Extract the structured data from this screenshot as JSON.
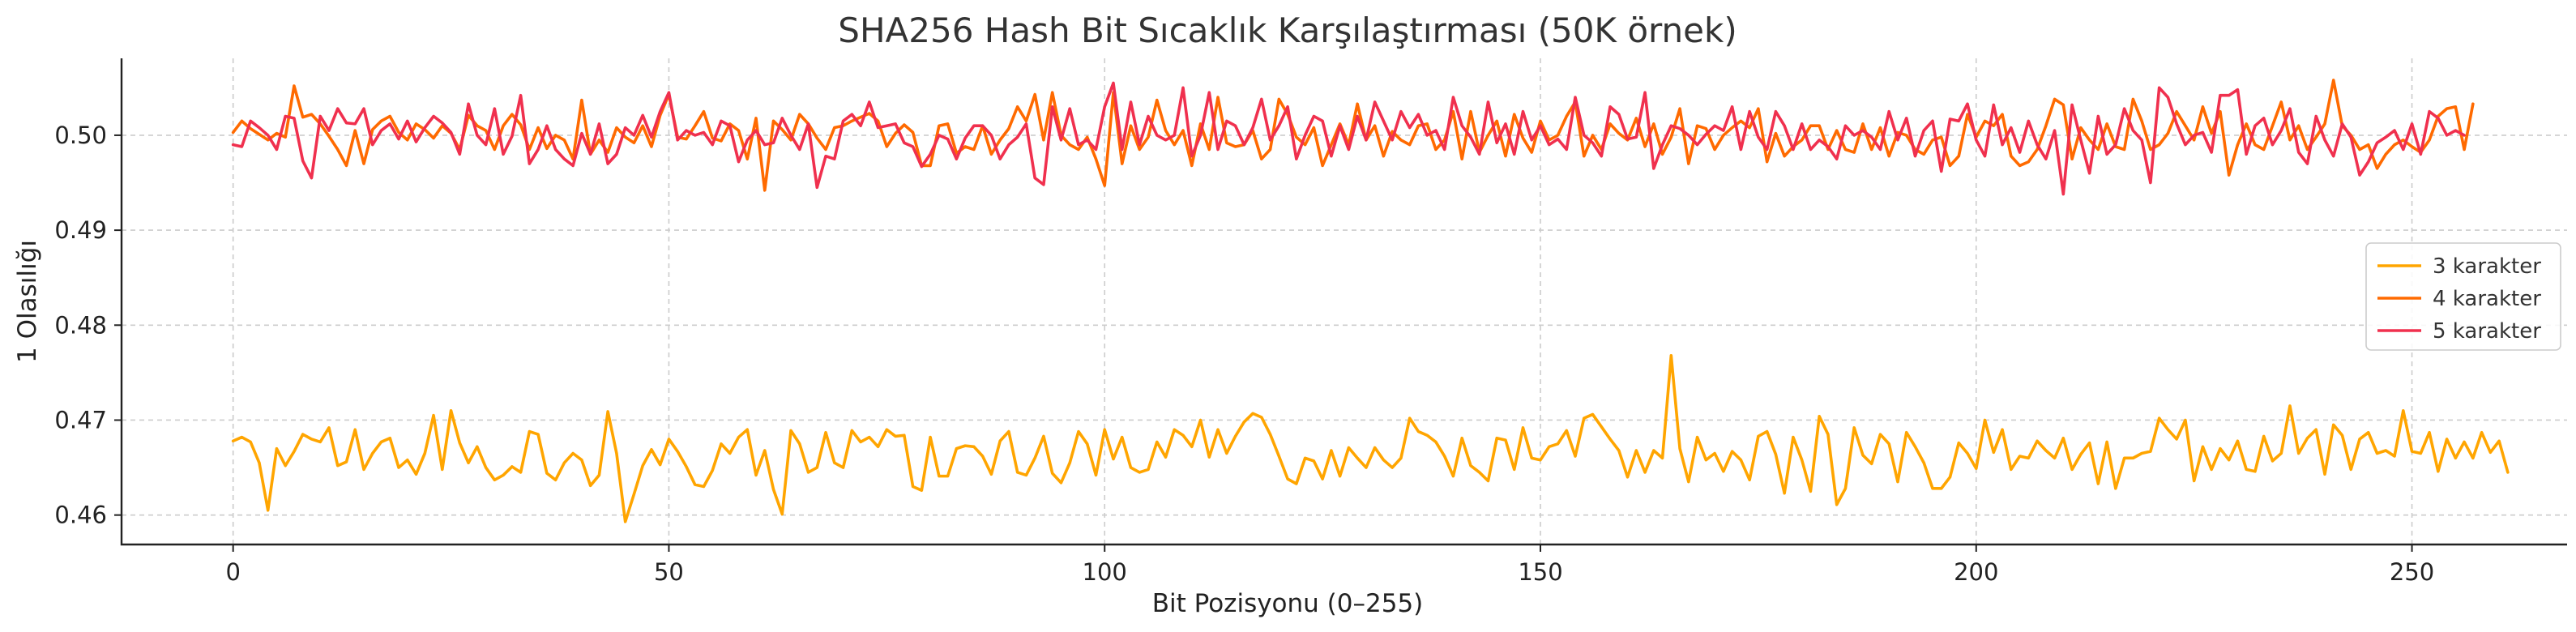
{
  "chart_data": {
    "type": "line",
    "title": "SHA256 Hash Bit Sıcaklık Karşılaştırması (50K örnek)",
    "xlabel": "Bit Pozisyonu (0–255)",
    "ylabel": "1 Olasılığı",
    "xlim": [
      -12.8,
      267.8
    ],
    "ylim": [
      0.4569,
      0.5081
    ],
    "xticks": [
      0,
      50,
      100,
      150,
      200,
      250
    ],
    "xtick_labels": [
      "0",
      "50",
      "100",
      "150",
      "200",
      "250"
    ],
    "yticks": [
      0.46,
      0.47,
      0.48,
      0.49,
      0.5
    ],
    "ytick_labels": [
      "0.46",
      "0.47",
      "0.48",
      "0.49",
      "0.50"
    ],
    "grid": true,
    "legend_position": "center-right",
    "series": [
      {
        "name": "3 karakter",
        "color": "#FFA500",
        "x_start": 0,
        "x_step": 1,
        "values": [
          0.4678,
          0.4682,
          0.4677,
          0.4655,
          0.4605,
          0.467,
          0.4652,
          0.4667,
          0.4685,
          0.468,
          0.4677,
          0.4692,
          0.4652,
          0.4656,
          0.469,
          0.4648,
          0.4665,
          0.4677,
          0.4681,
          0.465,
          0.4658,
          0.4643,
          0.4665,
          0.4705,
          0.4648,
          0.471,
          0.4676,
          0.4655,
          0.4672,
          0.465,
          0.4637,
          0.4642,
          0.4651,
          0.4645,
          0.4688,
          0.4685,
          0.4644,
          0.4637,
          0.4655,
          0.4665,
          0.4658,
          0.4631,
          0.4642,
          0.4709,
          0.4665,
          0.4593,
          0.4622,
          0.4652,
          0.4669,
          0.4653,
          0.468,
          0.4667,
          0.4651,
          0.4632,
          0.463,
          0.4647,
          0.4675,
          0.4665,
          0.4682,
          0.469,
          0.4642,
          0.4668,
          0.4627,
          0.4601,
          0.4689,
          0.4675,
          0.4645,
          0.465,
          0.4687,
          0.4655,
          0.465,
          0.4689,
          0.4677,
          0.4682,
          0.4672,
          0.469,
          0.4683,
          0.4684,
          0.463,
          0.4626,
          0.4682,
          0.4641,
          0.4641,
          0.467,
          0.4673,
          0.4672,
          0.4662,
          0.4643,
          0.4678,
          0.4688,
          0.4645,
          0.4642,
          0.466,
          0.4683,
          0.4644,
          0.4634,
          0.4655,
          0.4688,
          0.4675,
          0.4642,
          0.469,
          0.4659,
          0.4682,
          0.465,
          0.4645,
          0.4648,
          0.4677,
          0.4661,
          0.469,
          0.4684,
          0.4672,
          0.47,
          0.4661,
          0.469,
          0.4665,
          0.4683,
          0.4698,
          0.4707,
          0.4703,
          0.4685,
          0.4662,
          0.4638,
          0.4633,
          0.466,
          0.4657,
          0.4638,
          0.4668,
          0.4641,
          0.4671,
          0.466,
          0.465,
          0.4671,
          0.4658,
          0.465,
          0.466,
          0.4702,
          0.4688,
          0.4684,
          0.4677,
          0.4662,
          0.4641,
          0.4681,
          0.4652,
          0.4645,
          0.4636,
          0.4681,
          0.4679,
          0.4648,
          0.4692,
          0.466,
          0.4658,
          0.4672,
          0.4675,
          0.4689,
          0.4662,
          0.4702,
          0.4706,
          0.4693,
          0.468,
          0.4668,
          0.464,
          0.4668,
          0.4645,
          0.4668,
          0.466,
          0.4768,
          0.467,
          0.4635,
          0.4682,
          0.4658,
          0.4665,
          0.4646,
          0.4667,
          0.4658,
          0.4637,
          0.4683,
          0.4688,
          0.4664,
          0.4623,
          0.4682,
          0.4658,
          0.4625,
          0.4704,
          0.4685,
          0.4611,
          0.4628,
          0.4692,
          0.4663,
          0.4654,
          0.4685,
          0.4675,
          0.4635,
          0.4687,
          0.4672,
          0.4655,
          0.4628,
          0.4628,
          0.464,
          0.4676,
          0.4665,
          0.4649,
          0.47,
          0.4666,
          0.469,
          0.4648,
          0.4662,
          0.466,
          0.4678,
          0.4668,
          0.466,
          0.4681,
          0.4648,
          0.4664,
          0.4676,
          0.4633,
          0.4677,
          0.4628,
          0.466,
          0.466,
          0.4665,
          0.4667,
          0.4702,
          0.469,
          0.468,
          0.47,
          0.4636,
          0.4672,
          0.4648,
          0.467,
          0.4658,
          0.4678,
          0.4648,
          0.4646,
          0.4683,
          0.4657,
          0.4665,
          0.4715,
          0.4665,
          0.4681,
          0.469,
          0.4643,
          0.4695,
          0.4684,
          0.4648,
          0.468,
          0.4687,
          0.4665,
          0.4668,
          0.4662,
          0.471,
          0.4667,
          0.4665,
          0.4687,
          0.4646,
          0.468,
          0.466,
          0.4677,
          0.466,
          0.4687,
          0.4666,
          0.4678,
          0.4645
        ]
      },
      {
        "name": "4 karakter",
        "color": "#FF6A00",
        "x_start": 0,
        "x_step": 1,
        "values": [
          0.5003,
          0.5015,
          0.5007,
          0.5001,
          0.4995,
          0.5002,
          0.4998,
          0.5052,
          0.5019,
          0.5022,
          0.5012,
          0.4999,
          0.4985,
          0.4968,
          0.5005,
          0.497,
          0.5006,
          0.5015,
          0.502,
          0.5003,
          0.4995,
          0.5012,
          0.5006,
          0.4997,
          0.501,
          0.5002,
          0.4985,
          0.5021,
          0.501,
          0.5005,
          0.4985,
          0.501,
          0.5022,
          0.5011,
          0.4985,
          0.5008,
          0.4986,
          0.5,
          0.4995,
          0.4975,
          0.5037,
          0.498,
          0.4995,
          0.4982,
          0.5008,
          0.4998,
          0.4992,
          0.501,
          0.4988,
          0.5021,
          0.5043,
          0.4998,
          0.4996,
          0.501,
          0.5025,
          0.4997,
          0.4994,
          0.5012,
          0.5005,
          0.4975,
          0.5018,
          0.4942,
          0.5015,
          0.5006,
          0.4995,
          0.5022,
          0.5012,
          0.4997,
          0.4985,
          0.5008,
          0.501,
          0.5015,
          0.5019,
          0.5023,
          0.5015,
          0.4988,
          0.5002,
          0.5011,
          0.5003,
          0.4968,
          0.4968,
          0.501,
          0.5012,
          0.4981,
          0.4988,
          0.4985,
          0.501,
          0.498,
          0.4995,
          0.5007,
          0.503,
          0.5015,
          0.5043,
          0.4995,
          0.5045,
          0.5,
          0.499,
          0.4985,
          0.4998,
          0.4975,
          0.4947,
          0.5045,
          0.497,
          0.501,
          0.4985,
          0.4998,
          0.5037,
          0.5005,
          0.499,
          0.5005,
          0.4968,
          0.5012,
          0.4985,
          0.504,
          0.4992,
          0.4988,
          0.499,
          0.5005,
          0.4975,
          0.4985,
          0.5038,
          0.5022,
          0.4998,
          0.499,
          0.5008,
          0.4968,
          0.499,
          0.5012,
          0.499,
          0.5033,
          0.4995,
          0.501,
          0.4978,
          0.5004,
          0.4995,
          0.499,
          0.501,
          0.5012,
          0.4985,
          0.4995,
          0.5025,
          0.4975,
          0.5025,
          0.4982,
          0.5,
          0.5015,
          0.4978,
          0.5022,
          0.4997,
          0.4982,
          0.5015,
          0.4995,
          0.5,
          0.502,
          0.5035,
          0.4978,
          0.5,
          0.4985,
          0.5012,
          0.5002,
          0.4995,
          0.5018,
          0.4988,
          0.5012,
          0.498,
          0.4998,
          0.5028,
          0.497,
          0.501,
          0.5007,
          0.4985,
          0.5,
          0.5008,
          0.5015,
          0.5008,
          0.5028,
          0.4972,
          0.5002,
          0.4978,
          0.4988,
          0.4995,
          0.501,
          0.501,
          0.4985,
          0.5005,
          0.4985,
          0.4982,
          0.5012,
          0.4985,
          0.5008,
          0.4978,
          0.5003,
          0.5,
          0.4985,
          0.498,
          0.4995,
          0.4998,
          0.4968,
          0.4978,
          0.5022,
          0.4998,
          0.5015,
          0.501,
          0.5022,
          0.4978,
          0.4968,
          0.4972,
          0.4985,
          0.501,
          0.5038,
          0.5032,
          0.4975,
          0.5008,
          0.4995,
          0.4985,
          0.5012,
          0.4988,
          0.4985,
          0.5038,
          0.5015,
          0.4985,
          0.499,
          0.5002,
          0.5025,
          0.501,
          0.4995,
          0.503,
          0.5002,
          0.5025,
          0.4958,
          0.499,
          0.5012,
          0.499,
          0.4985,
          0.501,
          0.5035,
          0.4995,
          0.501,
          0.4985,
          0.4998,
          0.5012,
          0.5058,
          0.501,
          0.5,
          0.4985,
          0.499,
          0.4965,
          0.498,
          0.499,
          0.4995,
          0.4988,
          0.4982,
          0.4995,
          0.502,
          0.5028,
          0.503,
          0.4985,
          0.5033
        ]
      },
      {
        "name": "5 karakter",
        "color": "#F0304E",
        "x_start": 0,
        "x_step": 1,
        "values": [
          0.499,
          0.4988,
          0.5015,
          0.5008,
          0.5,
          0.4985,
          0.502,
          0.5018,
          0.4973,
          0.4955,
          0.502,
          0.5005,
          0.5028,
          0.5013,
          0.5012,
          0.5028,
          0.499,
          0.5005,
          0.5012,
          0.4996,
          0.5015,
          0.4993,
          0.5008,
          0.502,
          0.5013,
          0.5003,
          0.498,
          0.5033,
          0.5,
          0.499,
          0.5028,
          0.498,
          0.4999,
          0.5042,
          0.497,
          0.4985,
          0.501,
          0.4985,
          0.4975,
          0.4968,
          0.5002,
          0.498,
          0.5012,
          0.497,
          0.498,
          0.5008,
          0.5,
          0.5021,
          0.4998,
          0.5025,
          0.5045,
          0.4995,
          0.5005,
          0.5,
          0.5003,
          0.499,
          0.5015,
          0.501,
          0.4972,
          0.4995,
          0.5005,
          0.499,
          0.4992,
          0.5018,
          0.5,
          0.4985,
          0.5012,
          0.4945,
          0.4978,
          0.4975,
          0.5015,
          0.5022,
          0.501,
          0.5035,
          0.5008,
          0.501,
          0.5012,
          0.4992,
          0.4988,
          0.4967,
          0.498,
          0.5,
          0.4996,
          0.4975,
          0.4997,
          0.501,
          0.501,
          0.5,
          0.4975,
          0.499,
          0.4998,
          0.5012,
          0.4955,
          0.4948,
          0.503,
          0.4995,
          0.5028,
          0.499,
          0.4995,
          0.4985,
          0.503,
          0.5055,
          0.4985,
          0.5035,
          0.499,
          0.502,
          0.5,
          0.4995,
          0.5,
          0.505,
          0.4978,
          0.5,
          0.5045,
          0.4985,
          0.5015,
          0.501,
          0.499,
          0.5008,
          0.5038,
          0.4995,
          0.501,
          0.503,
          0.4975,
          0.5,
          0.502,
          0.5015,
          0.4978,
          0.501,
          0.4985,
          0.502,
          0.4995,
          0.5035,
          0.5015,
          0.4995,
          0.5025,
          0.5008,
          0.5022,
          0.5,
          0.5005,
          0.4985,
          0.504,
          0.501,
          0.4998,
          0.498,
          0.5035,
          0.4992,
          0.5012,
          0.498,
          0.5025,
          0.4995,
          0.501,
          0.499,
          0.4996,
          0.4985,
          0.504,
          0.5,
          0.4992,
          0.4978,
          0.503,
          0.5022,
          0.4996,
          0.4998,
          0.5045,
          0.4965,
          0.499,
          0.501,
          0.5007,
          0.5,
          0.499,
          0.5001,
          0.501,
          0.5005,
          0.503,
          0.4985,
          0.5025,
          0.4998,
          0.4985,
          0.5025,
          0.501,
          0.4985,
          0.5012,
          0.4985,
          0.4995,
          0.4988,
          0.4975,
          0.501,
          0.5,
          0.5005,
          0.4998,
          0.4985,
          0.5025,
          0.4995,
          0.5018,
          0.4978,
          0.5005,
          0.5015,
          0.4962,
          0.5017,
          0.5015,
          0.5033,
          0.4995,
          0.4978,
          0.5032,
          0.499,
          0.5008,
          0.4982,
          0.5015,
          0.499,
          0.4975,
          0.5005,
          0.4938,
          0.5032,
          0.4995,
          0.496,
          0.502,
          0.498,
          0.499,
          0.5028,
          0.5005,
          0.4995,
          0.495,
          0.505,
          0.504,
          0.5012,
          0.499,
          0.5,
          0.5003,
          0.4982,
          0.5042,
          0.5042,
          0.5048,
          0.498,
          0.501,
          0.5018,
          0.499,
          0.5005,
          0.5028,
          0.4982,
          0.497,
          0.502,
          0.4995,
          0.4978,
          0.5012,
          0.4998,
          0.4958,
          0.4972,
          0.4992,
          0.4998,
          0.5005,
          0.4985,
          0.5012,
          0.498,
          0.5025,
          0.5018,
          0.5,
          0.5005,
          0.5
        ]
      }
    ]
  }
}
